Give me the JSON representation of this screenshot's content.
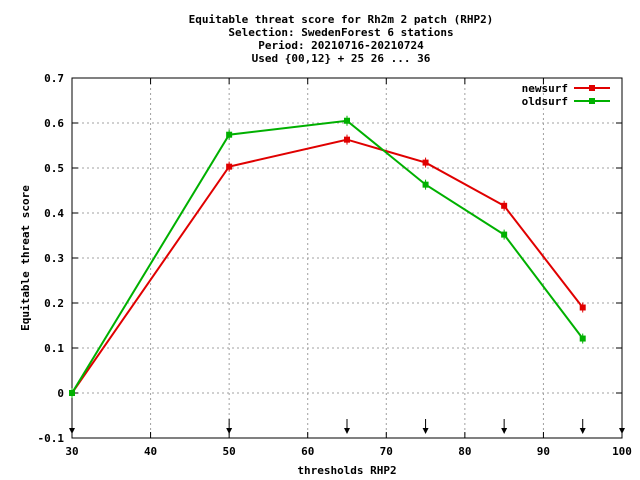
{
  "chart_data": {
    "type": "line",
    "title_lines": [
      "Equitable threat score  for Rh2m 2 patch (RHP2)",
      "Selection: SwedenForest       6 stations",
      "Period: 20210716-20210724",
      "Used {00,12} + 25 26 ... 36"
    ],
    "xlabel": "thresholds RHP2",
    "ylabel": "Equitable threat score",
    "xlim": [
      30,
      100
    ],
    "ylim": [
      -0.1,
      0.7
    ],
    "xticks": [
      30,
      40,
      50,
      60,
      70,
      80,
      90,
      100
    ],
    "yticks": [
      -0.1,
      0,
      0.1,
      0.2,
      0.3,
      0.4,
      0.5,
      0.6,
      0.7
    ],
    "ytick_labels": [
      "-0.1",
      "0",
      "0.1",
      "0.2",
      "0.3",
      "0.4",
      "0.5",
      "0.6",
      "0.7"
    ],
    "grid": true,
    "legend_position": "top-right",
    "threshold_markers": [
      30,
      50,
      65,
      75,
      85,
      95,
      100
    ],
    "series": [
      {
        "name": "newsurf",
        "color": "#e00000",
        "x": [
          30,
          50,
          65,
          75,
          85,
          95
        ],
        "y": [
          0.0,
          0.503,
          0.563,
          0.512,
          0.416,
          0.19
        ]
      },
      {
        "name": "oldsurf",
        "color": "#00b000",
        "x": [
          30,
          50,
          65,
          75,
          85,
          95
        ],
        "y": [
          0.0,
          0.574,
          0.605,
          0.463,
          0.352,
          0.121
        ]
      }
    ]
  }
}
